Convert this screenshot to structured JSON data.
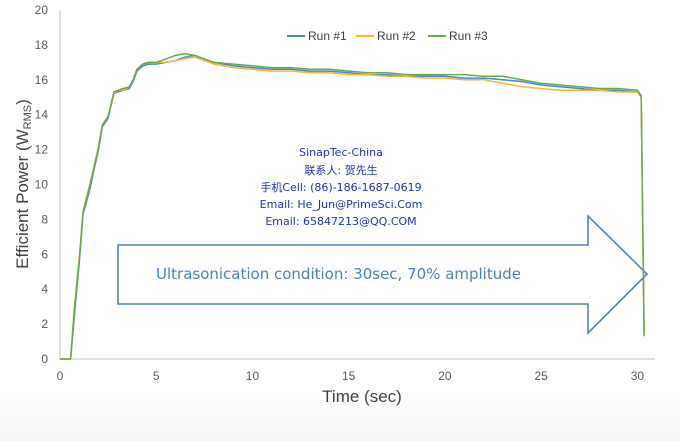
{
  "chart_data": {
    "type": "line",
    "xlabel": "Time (sec)",
    "ylabel_main": "Efficient Power (W",
    "ylabel_sub": "RMS",
    "ylabel_close": ")",
    "xlim": [
      0,
      30.5
    ],
    "ylim": [
      0,
      20
    ],
    "xticks": [
      "0",
      "5",
      "10",
      "15",
      "20",
      "25",
      "30"
    ],
    "yticks": [
      "0",
      "2",
      "4",
      "6",
      "8",
      "10",
      "12",
      "14",
      "16",
      "18",
      "20"
    ],
    "legend_position": "top-center",
    "grid": false,
    "series": [
      {
        "name": "Run #1",
        "color": "#4a86c8",
        "x": [
          0,
          0.55,
          0.75,
          1.0,
          1.2,
          1.5,
          1.8,
          2.0,
          2.2,
          2.5,
          2.8,
          3.0,
          3.3,
          3.6,
          3.8,
          4.0,
          4.3,
          4.6,
          5.0,
          5.5,
          6.0,
          6.5,
          7.0,
          7.5,
          8.0,
          9.0,
          10.0,
          11.0,
          12.0,
          13.0,
          14.0,
          15.0,
          16.0,
          17.0,
          18.0,
          19.0,
          20.0,
          21.0,
          22.0,
          23.0,
          24.0,
          25.0,
          26.0,
          27.0,
          28.0,
          29.0,
          30.0,
          30.2,
          30.35
        ],
        "y": [
          0,
          0,
          2.5,
          5.5,
          8.3,
          9.5,
          11.0,
          12.0,
          13.3,
          13.8,
          15.2,
          15.3,
          15.4,
          15.5,
          15.9,
          16.5,
          16.8,
          16.9,
          16.9,
          17.0,
          17.1,
          17.3,
          17.4,
          17.2,
          17.0,
          16.8,
          16.7,
          16.6,
          16.6,
          16.5,
          16.5,
          16.4,
          16.3,
          16.3,
          16.2,
          16.2,
          16.2,
          16.1,
          16.1,
          16.0,
          15.9,
          15.7,
          15.6,
          15.5,
          15.4,
          15.4,
          15.3,
          15.0,
          1.5
        ]
      },
      {
        "name": "Run #2",
        "color": "#f5b733",
        "x": [
          0,
          0.55,
          0.75,
          1.0,
          1.2,
          1.5,
          1.8,
          2.0,
          2.2,
          2.5,
          2.8,
          3.0,
          3.3,
          3.6,
          3.8,
          4.0,
          4.3,
          4.6,
          5.0,
          5.5,
          6.0,
          6.5,
          7.0,
          7.5,
          8.0,
          9.0,
          10.0,
          11.0,
          12.0,
          13.0,
          14.0,
          15.0,
          16.0,
          17.0,
          18.0,
          19.0,
          20.0,
          21.0,
          22.0,
          23.0,
          24.0,
          25.0,
          26.0,
          27.0,
          28.0,
          29.0,
          30.0,
          30.2,
          30.35
        ],
        "y": [
          0,
          0,
          3.0,
          5.8,
          8.5,
          9.8,
          11.2,
          12.2,
          13.4,
          13.9,
          15.2,
          15.4,
          15.4,
          15.6,
          16.0,
          16.6,
          16.9,
          17.0,
          17.0,
          17.0,
          17.1,
          17.2,
          17.3,
          17.1,
          16.9,
          16.7,
          16.6,
          16.5,
          16.5,
          16.4,
          16.4,
          16.3,
          16.3,
          16.2,
          16.2,
          16.1,
          16.1,
          16.0,
          16.0,
          15.8,
          15.6,
          15.5,
          15.4,
          15.4,
          15.4,
          15.3,
          15.3,
          15.0,
          1.4
        ]
      },
      {
        "name": "Run #3",
        "color": "#6aa84f",
        "x": [
          0,
          0.55,
          0.75,
          1.0,
          1.2,
          1.5,
          1.8,
          2.0,
          2.2,
          2.5,
          2.8,
          3.0,
          3.3,
          3.6,
          3.8,
          4.0,
          4.3,
          4.6,
          5.0,
          5.5,
          6.0,
          6.5,
          7.0,
          7.5,
          8.0,
          9.0,
          10.0,
          11.0,
          12.0,
          13.0,
          14.0,
          15.0,
          16.0,
          17.0,
          18.0,
          19.0,
          20.0,
          21.0,
          22.0,
          23.0,
          24.0,
          25.0,
          26.0,
          27.0,
          28.0,
          29.0,
          30.0,
          30.2,
          30.35
        ],
        "y": [
          0,
          0,
          2.8,
          5.6,
          8.4,
          9.7,
          11.1,
          12.1,
          13.4,
          13.9,
          15.3,
          15.4,
          15.5,
          15.6,
          16.0,
          16.6,
          16.9,
          17.0,
          17.0,
          17.2,
          17.4,
          17.5,
          17.4,
          17.2,
          17.0,
          16.9,
          16.8,
          16.7,
          16.7,
          16.6,
          16.6,
          16.5,
          16.4,
          16.4,
          16.3,
          16.3,
          16.3,
          16.3,
          16.2,
          16.2,
          16.0,
          15.8,
          15.7,
          15.6,
          15.5,
          15.5,
          15.4,
          15.1,
          1.3
        ]
      }
    ]
  },
  "contact": {
    "line1": "SinapTec-China",
    "line2": "联系人: 贺先生",
    "line3": "手机Cell: (86)-186-1687-0619",
    "line4": "Email: He_Jun@PrimeSci.Com",
    "line5": "Email: 65847213@QQ.COM"
  },
  "annotation": {
    "text": "Ultrasonication condition: 30sec, 70% amplitude",
    "color": "#4a7fc0"
  }
}
